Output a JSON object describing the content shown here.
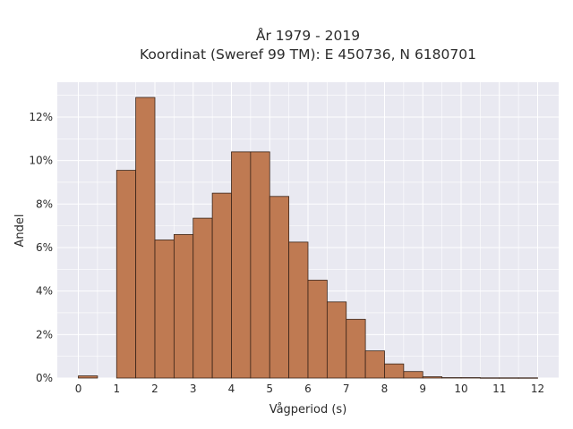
{
  "chart_data": {
    "type": "bar",
    "title_line1": "År 1979 - 2019",
    "title_line2": "Koordinat (Sweref 99 TM): E 450736, N 6180701",
    "xlabel": "Vågperiod (s)",
    "ylabel": "Andel",
    "x_ticks": [
      "0",
      "1",
      "2",
      "3",
      "4",
      "5",
      "6",
      "7",
      "8",
      "9",
      "10",
      "11",
      "12"
    ],
    "y_ticks": [
      "0%",
      "2%",
      "4%",
      "6%",
      "8%",
      "10%",
      "12%"
    ],
    "xlim": [
      -0.55,
      12.55
    ],
    "ylim": [
      0,
      13.6
    ],
    "grid": true,
    "bar_color": "#bf7a52",
    "bar_edge_color": "#3a2418",
    "background_color": "#e9e9f1",
    "bins": [
      {
        "x0": 0.0,
        "x1": 0.5,
        "value": 0.1
      },
      {
        "x0": 1.0,
        "x1": 1.5,
        "value": 9.55
      },
      {
        "x0": 1.5,
        "x1": 2.0,
        "value": 12.9
      },
      {
        "x0": 2.0,
        "x1": 2.5,
        "value": 6.35
      },
      {
        "x0": 2.5,
        "x1": 3.0,
        "value": 6.6
      },
      {
        "x0": 3.0,
        "x1": 3.5,
        "value": 7.35
      },
      {
        "x0": 3.5,
        "x1": 4.0,
        "value": 8.5
      },
      {
        "x0": 4.0,
        "x1": 4.5,
        "value": 10.4
      },
      {
        "x0": 4.5,
        "x1": 5.0,
        "value": 10.4
      },
      {
        "x0": 5.0,
        "x1": 5.5,
        "value": 8.35
      },
      {
        "x0": 5.5,
        "x1": 6.0,
        "value": 6.25
      },
      {
        "x0": 6.0,
        "x1": 6.5,
        "value": 4.5
      },
      {
        "x0": 6.5,
        "x1": 7.0,
        "value": 3.5
      },
      {
        "x0": 7.0,
        "x1": 7.5,
        "value": 2.7
      },
      {
        "x0": 7.5,
        "x1": 8.0,
        "value": 1.25
      },
      {
        "x0": 8.0,
        "x1": 8.5,
        "value": 0.65
      },
      {
        "x0": 8.5,
        "x1": 9.0,
        "value": 0.3
      },
      {
        "x0": 9.0,
        "x1": 9.5,
        "value": 0.06
      },
      {
        "x0": 9.5,
        "x1": 10.0,
        "value": 0.02
      },
      {
        "x0": 10.0,
        "x1": 10.5,
        "value": 0.02
      },
      {
        "x0": 10.5,
        "x1": 11.0,
        "value": 0.01
      },
      {
        "x0": 11.0,
        "x1": 11.5,
        "value": 0.01
      },
      {
        "x0": 11.5,
        "x1": 12.0,
        "value": 0.01
      }
    ]
  }
}
